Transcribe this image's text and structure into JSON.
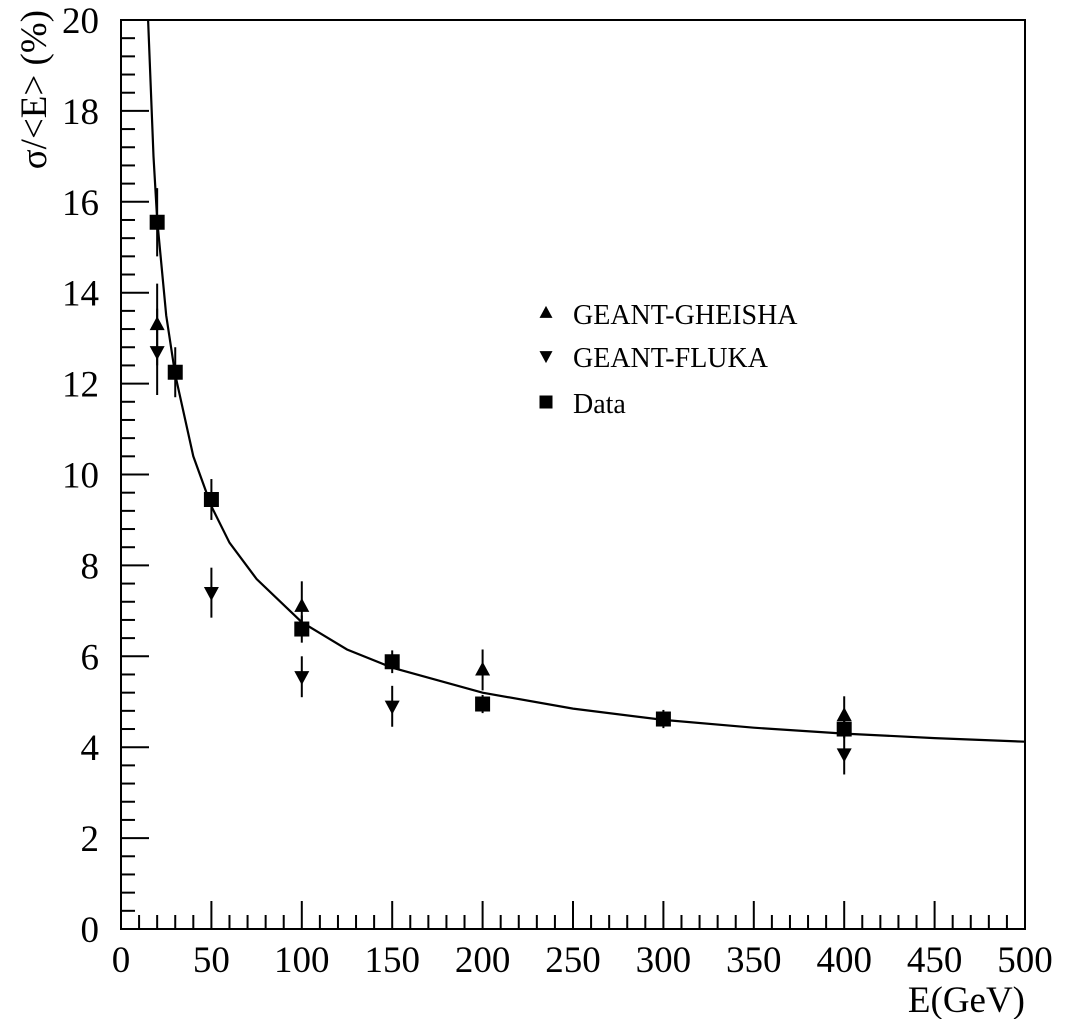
{
  "chart_data": {
    "type": "scatter",
    "title": "",
    "xlabel": "E(GeV)",
    "ylabel": "σ/<E> (%)",
    "xlim": [
      0,
      500
    ],
    "ylim": [
      0,
      20
    ],
    "x_ticks": [
      0,
      50,
      100,
      150,
      200,
      250,
      300,
      350,
      400,
      450,
      500
    ],
    "y_ticks": [
      0,
      2,
      4,
      6,
      8,
      10,
      12,
      14,
      16,
      18,
      20
    ],
    "x_tick_labels": [
      "0",
      "50",
      "100",
      "150",
      "200",
      "250",
      "300",
      "350",
      "400",
      "450",
      "500"
    ],
    "y_tick_labels": [
      "0",
      "2",
      "4",
      "6",
      "8",
      "10",
      "12",
      "14",
      "16",
      "18",
      "20"
    ],
    "grid": false,
    "legend_position": "upper-right",
    "series": [
      {
        "name": "GEANT-GHEISHA",
        "marker": "triangle-up",
        "color": "#000000",
        "points": [
          {
            "x": 20,
            "y": 13.3,
            "err": 0.9
          },
          {
            "x": 100,
            "y": 7.1,
            "err": 0.55
          },
          {
            "x": 200,
            "y": 5.7,
            "err": 0.45
          },
          {
            "x": 400,
            "y": 4.7,
            "err": 0.42
          }
        ]
      },
      {
        "name": "GEANT-FLUKA",
        "marker": "triangle-down",
        "color": "#000000",
        "points": [
          {
            "x": 20,
            "y": 12.7,
            "err": 0.95
          },
          {
            "x": 50,
            "y": 7.4,
            "err": 0.55
          },
          {
            "x": 100,
            "y": 5.55,
            "err": 0.45
          },
          {
            "x": 150,
            "y": 4.9,
            "err": 0.45
          },
          {
            "x": 400,
            "y": 3.85,
            "err": 0.45
          }
        ]
      },
      {
        "name": "Data",
        "marker": "square",
        "color": "#000000",
        "points": [
          {
            "x": 20,
            "y": 15.55,
            "err": 0.75
          },
          {
            "x": 30,
            "y": 12.25,
            "err": 0.55
          },
          {
            "x": 50,
            "y": 9.45,
            "err": 0.45
          },
          {
            "x": 100,
            "y": 6.6,
            "err": 0.3
          },
          {
            "x": 150,
            "y": 5.88,
            "err": 0.25
          },
          {
            "x": 200,
            "y": 4.95,
            "err": 0.2
          },
          {
            "x": 300,
            "y": 4.62,
            "err": 0.2
          },
          {
            "x": 400,
            "y": 4.4,
            "err": 0.2
          }
        ]
      }
    ],
    "fit_curve": {
      "x": [
        15,
        18,
        20,
        25,
        30,
        40,
        50,
        60,
        75,
        100,
        125,
        150,
        200,
        250,
        300,
        350,
        400,
        450,
        500
      ],
      "y": [
        20.0,
        17.0,
        15.6,
        13.5,
        12.2,
        10.4,
        9.3,
        8.5,
        7.7,
        6.75,
        6.15,
        5.75,
        5.2,
        4.85,
        4.6,
        4.43,
        4.3,
        4.2,
        4.12
      ]
    }
  }
}
